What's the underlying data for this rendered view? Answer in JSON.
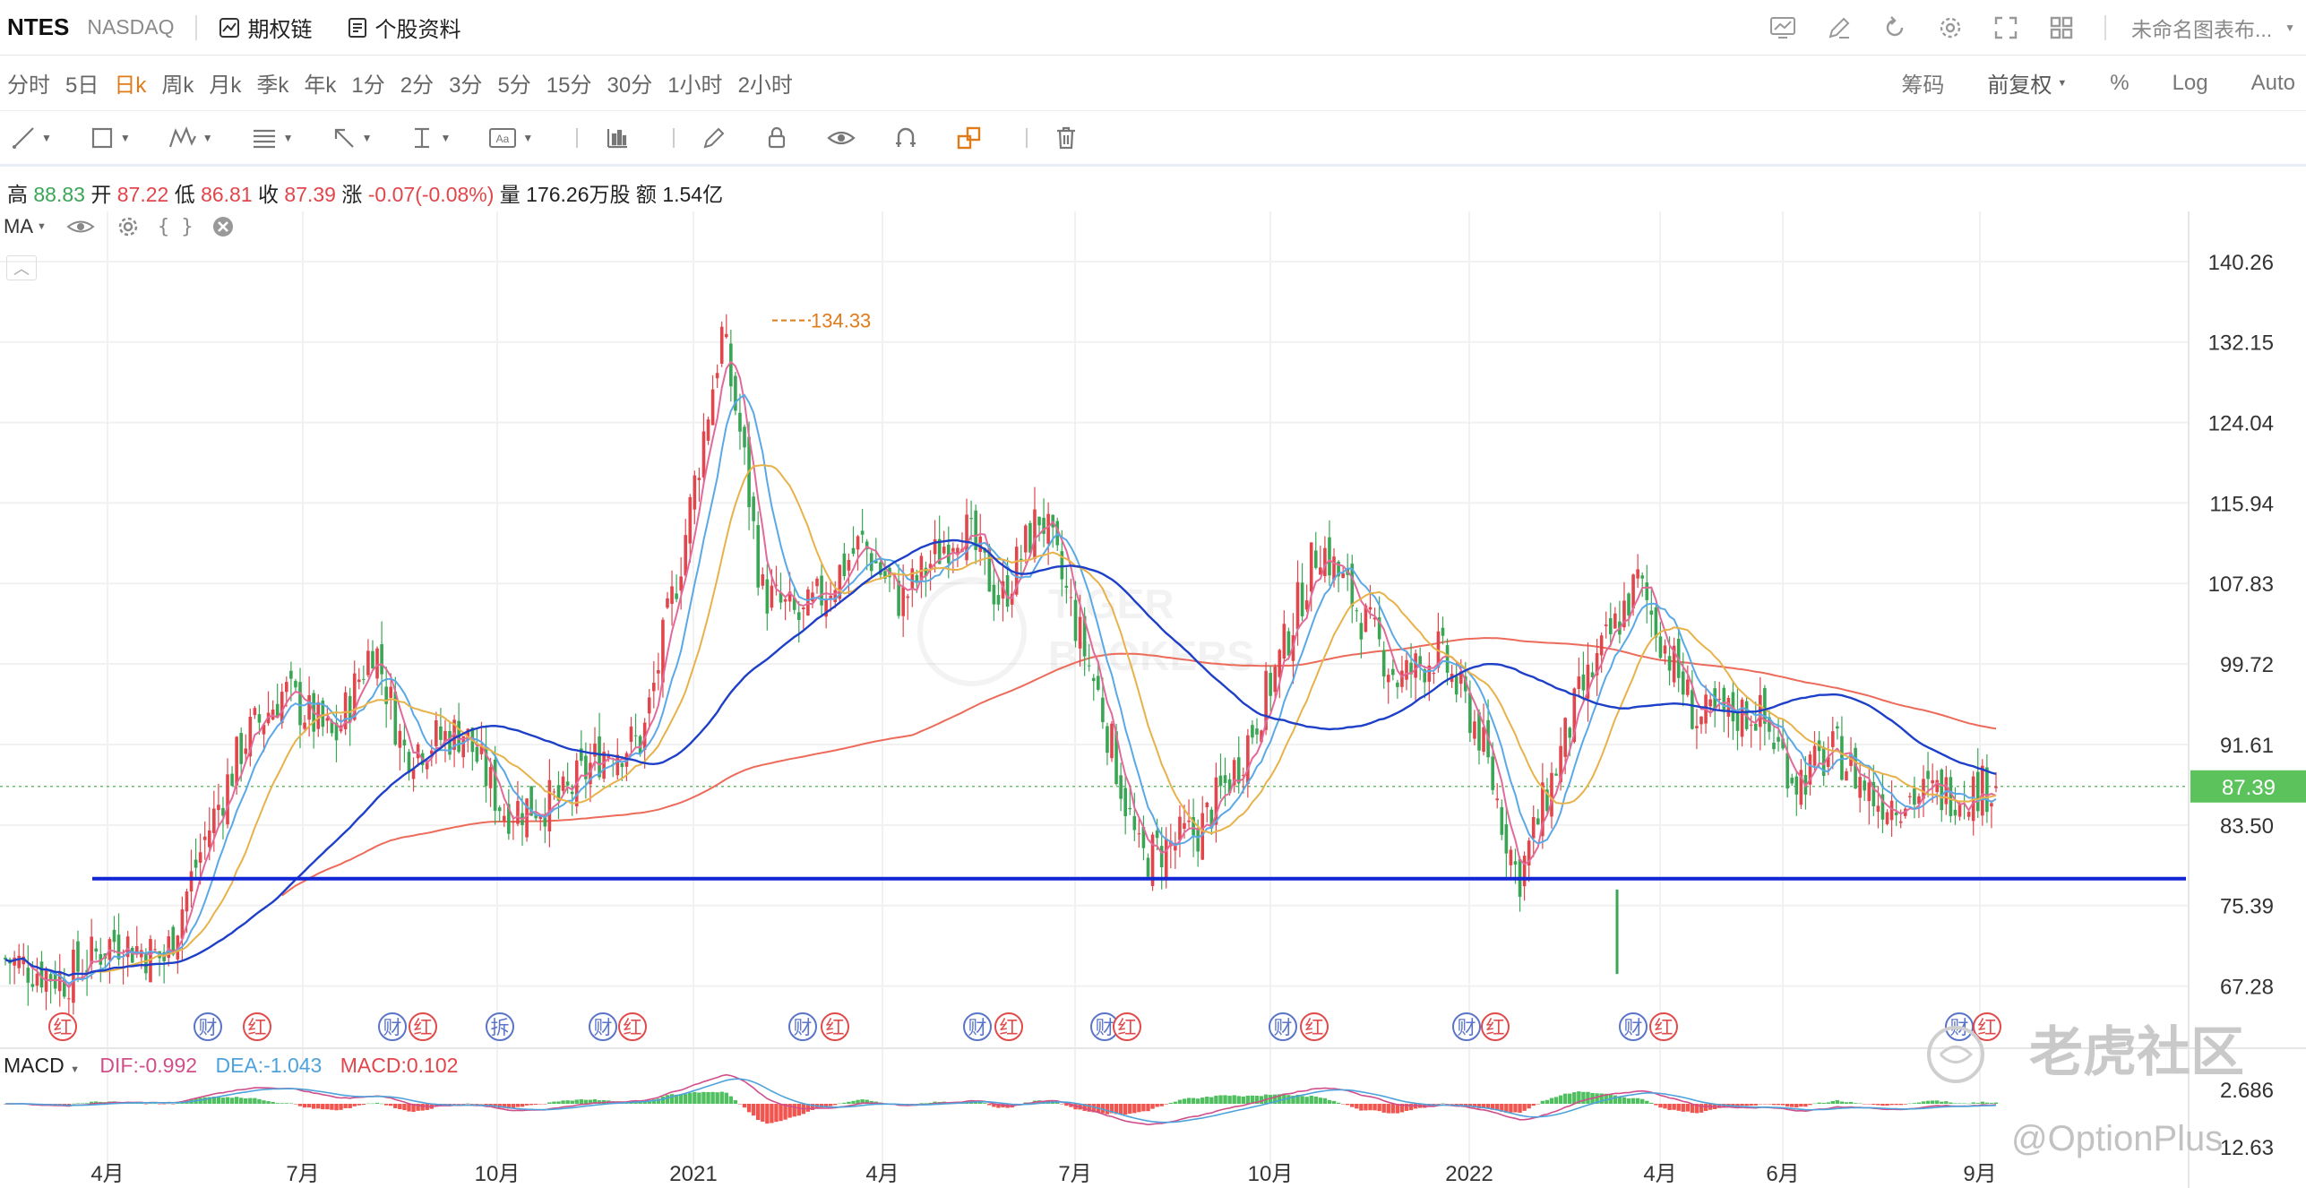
{
  "topbar": {
    "symbol": "NTES",
    "exchange": "NASDAQ",
    "options_link": "期权链",
    "profile_link": "个股资料",
    "layout_name": "未命名图表布..."
  },
  "periods": [
    {
      "label": "分时",
      "active": false
    },
    {
      "label": "5日",
      "active": false
    },
    {
      "label": "日k",
      "active": true
    },
    {
      "label": "周k",
      "active": false
    },
    {
      "label": "月k",
      "active": false
    },
    {
      "label": "季k",
      "active": false
    },
    {
      "label": "年k",
      "active": false
    },
    {
      "label": "1分",
      "active": false
    },
    {
      "label": "2分",
      "active": false
    },
    {
      "label": "3分",
      "active": false
    },
    {
      "label": "5分",
      "active": false
    },
    {
      "label": "15分",
      "active": false
    },
    {
      "label": "30分",
      "active": false
    },
    {
      "label": "1小时",
      "active": false
    },
    {
      "label": "2小时",
      "active": false
    }
  ],
  "right_options": {
    "chips": "筹码",
    "adjust": "前复权",
    "percent": "%",
    "log": "Log",
    "auto": "Auto"
  },
  "ohlc": {
    "high_label": "高",
    "high": "88.83",
    "open_label": "开",
    "open": "87.22",
    "low_label": "低",
    "low": "86.81",
    "close_label": "收",
    "close": "87.39",
    "change_label": "涨",
    "change": "-0.07(-0.08%)",
    "volume_label": "量",
    "volume": "176.26万股",
    "amount_label": "额",
    "amount": "1.54亿"
  },
  "indicator": {
    "name": "MA",
    "code_glyph": "{ }"
  },
  "macd": {
    "name": "MACD",
    "dif": "DIF:-0.992",
    "dea": "DEA:-1.043",
    "macd": "MACD:0.102"
  },
  "colors": {
    "up": "#e0464b",
    "down": "#3aa655",
    "ma5": "#e26a9a",
    "ma10": "#5aa9e6",
    "ma20": "#e8b24a",
    "ma60": "#1e40c8",
    "ma250": "#ec6b5a",
    "hline": "#1226d6",
    "accent": "#e07b1a",
    "price_tag": "#5cc35c"
  },
  "chart_data": {
    "type": "candlestick",
    "price_ticks": [
      "140.26",
      "132.15",
      "124.04",
      "115.94",
      "107.83",
      "99.72",
      "91.61",
      "83.50",
      "75.39",
      "67.28"
    ],
    "macd_ticks": [
      "2.686",
      "12.63"
    ],
    "x_ticks": [
      "4月",
      "7月",
      "10月",
      "2021",
      "4月",
      "7月",
      "10月",
      "2022",
      "4月",
      "6月",
      "9月"
    ],
    "last_price": "87.39",
    "high_marker": "134.33",
    "support_level": 78.1,
    "events": [
      "红",
      "财",
      "红",
      "财",
      "红",
      "拆",
      "财",
      "红",
      "财",
      "红",
      "财",
      "红",
      "财",
      "红",
      "财",
      "红",
      "财",
      "红",
      "财",
      "红",
      "财",
      "红"
    ],
    "watermarks": {
      "brand": "老虎社区",
      "handle": "@OptionPlus"
    },
    "price_path": [
      [
        0,
        70
      ],
      [
        0.03,
        68
      ],
      [
        0.055,
        72
      ],
      [
        0.08,
        70
      ],
      [
        0.1,
        82
      ],
      [
        0.12,
        92
      ],
      [
        0.14,
        97
      ],
      [
        0.165,
        92
      ],
      [
        0.185,
        102
      ],
      [
        0.2,
        91
      ],
      [
        0.23,
        93
      ],
      [
        0.25,
        85
      ],
      [
        0.28,
        86
      ],
      [
        0.3,
        91
      ],
      [
        0.32,
        92
      ],
      [
        0.34,
        111
      ],
      [
        0.36,
        133
      ],
      [
        0.37,
        122
      ],
      [
        0.38,
        107
      ],
      [
        0.4,
        104
      ],
      [
        0.43,
        112
      ],
      [
        0.45,
        106
      ],
      [
        0.48,
        114
      ],
      [
        0.5,
        106
      ],
      [
        0.52,
        115
      ],
      [
        0.55,
        96
      ],
      [
        0.57,
        80
      ],
      [
        0.6,
        83
      ],
      [
        0.62,
        90
      ],
      [
        0.64,
        100
      ],
      [
        0.66,
        112
      ],
      [
        0.68,
        105
      ],
      [
        0.7,
        98
      ],
      [
        0.72,
        101
      ],
      [
        0.74,
        93
      ],
      [
        0.76,
        78
      ],
      [
        0.79,
        96
      ],
      [
        0.82,
        108
      ],
      [
        0.85,
        94
      ],
      [
        0.88,
        95
      ],
      [
        0.9,
        88
      ],
      [
        0.92,
        91
      ],
      [
        0.94,
        86
      ],
      [
        1.0,
        87.4
      ]
    ]
  }
}
